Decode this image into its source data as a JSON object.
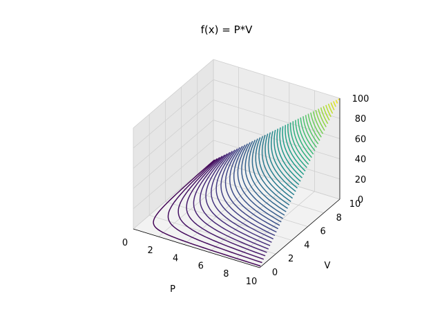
{
  "chart_data": {
    "type": "contour3d",
    "title": "f(x) = P*V",
    "function": "P*V",
    "xlabel": "P",
    "ylabel": "V",
    "zlabel": "",
    "x_range": [
      0,
      10
    ],
    "y_range": [
      0,
      10
    ],
    "z_range": [
      0,
      100
    ],
    "x_ticks": [
      0,
      2,
      4,
      6,
      8,
      10
    ],
    "y_ticks": [
      0,
      2,
      4,
      6,
      8,
      10
    ],
    "z_ticks": [
      0,
      20,
      40,
      60,
      80,
      100
    ],
    "contour_levels": 50,
    "colormap": "viridis",
    "grid": true
  }
}
